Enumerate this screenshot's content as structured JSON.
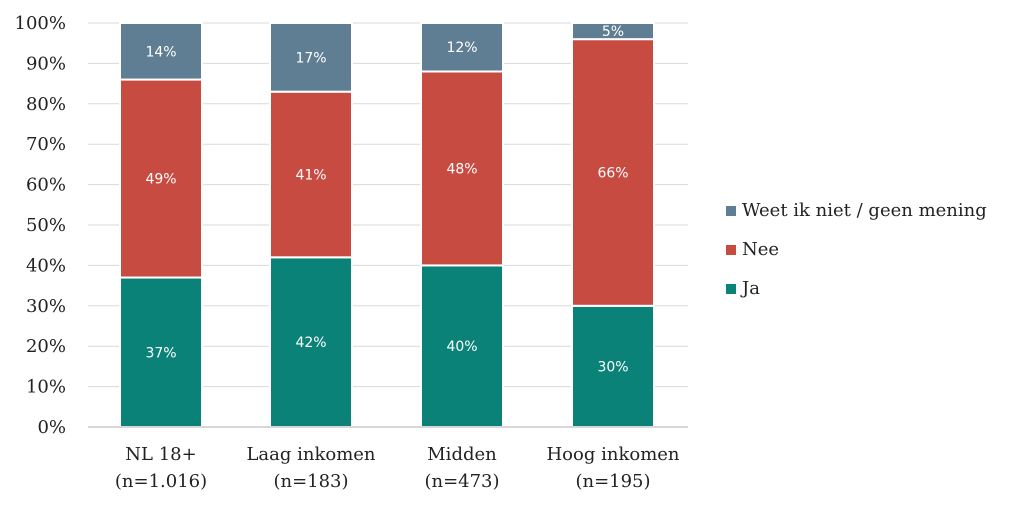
{
  "chart_data": {
    "type": "bar",
    "stacked": true,
    "categories": [
      "NL 18+",
      "Laag inkomen",
      "Midden",
      "Hoog inkomen"
    ],
    "category_n": [
      "(n=1.016)",
      "(n=183)",
      "(n=473)",
      "(n=195)"
    ],
    "series": [
      {
        "name": "Ja",
        "color": "#0a8278",
        "values": [
          37,
          42,
          40,
          30
        ]
      },
      {
        "name": "Nee",
        "color": "#c84b41",
        "values": [
          49,
          41,
          48,
          66
        ]
      },
      {
        "name": "Weet ik niet / geen mening",
        "color": "#5f7e93",
        "values": [
          14,
          17,
          12,
          5
        ]
      }
    ],
    "data_labels": [
      [
        "37%",
        "42%",
        "40%",
        "30%"
      ],
      [
        "49%",
        "41%",
        "48%",
        "66%"
      ],
      [
        "14%",
        "17%",
        "12%",
        "5%"
      ]
    ],
    "ylim": [
      0,
      100
    ],
    "yticks": [
      0,
      10,
      20,
      30,
      40,
      50,
      60,
      70,
      80,
      90,
      100
    ],
    "ytick_labels": [
      "0%",
      "10%",
      "20%",
      "30%",
      "40%",
      "50%",
      "60%",
      "70%",
      "80%",
      "90%",
      "100%"
    ],
    "legend": {
      "placement": "right",
      "items": [
        "Weet ik niet / geen mening",
        "Nee",
        "Ja"
      ]
    },
    "grid": true,
    "title": "",
    "xlabel": "",
    "ylabel": ""
  }
}
